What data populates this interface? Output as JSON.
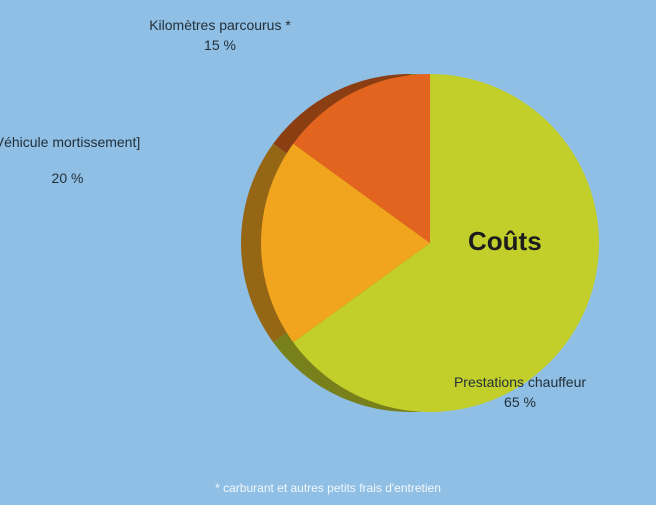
{
  "chart_data": {
    "type": "pie",
    "title": "Coûts",
    "categories": [
      "Prestations chauffeur",
      "Véhicule mortissement]",
      "Kilomètres parcourus *"
    ],
    "values": [
      65,
      20,
      15
    ],
    "value_labels": [
      "65 %",
      "20 %",
      "15 %"
    ],
    "colors": [
      "#c2cf2b",
      "#f1a41e",
      "#e2641f"
    ],
    "footnote": "* carburant et autres petits frais d'entretien"
  }
}
